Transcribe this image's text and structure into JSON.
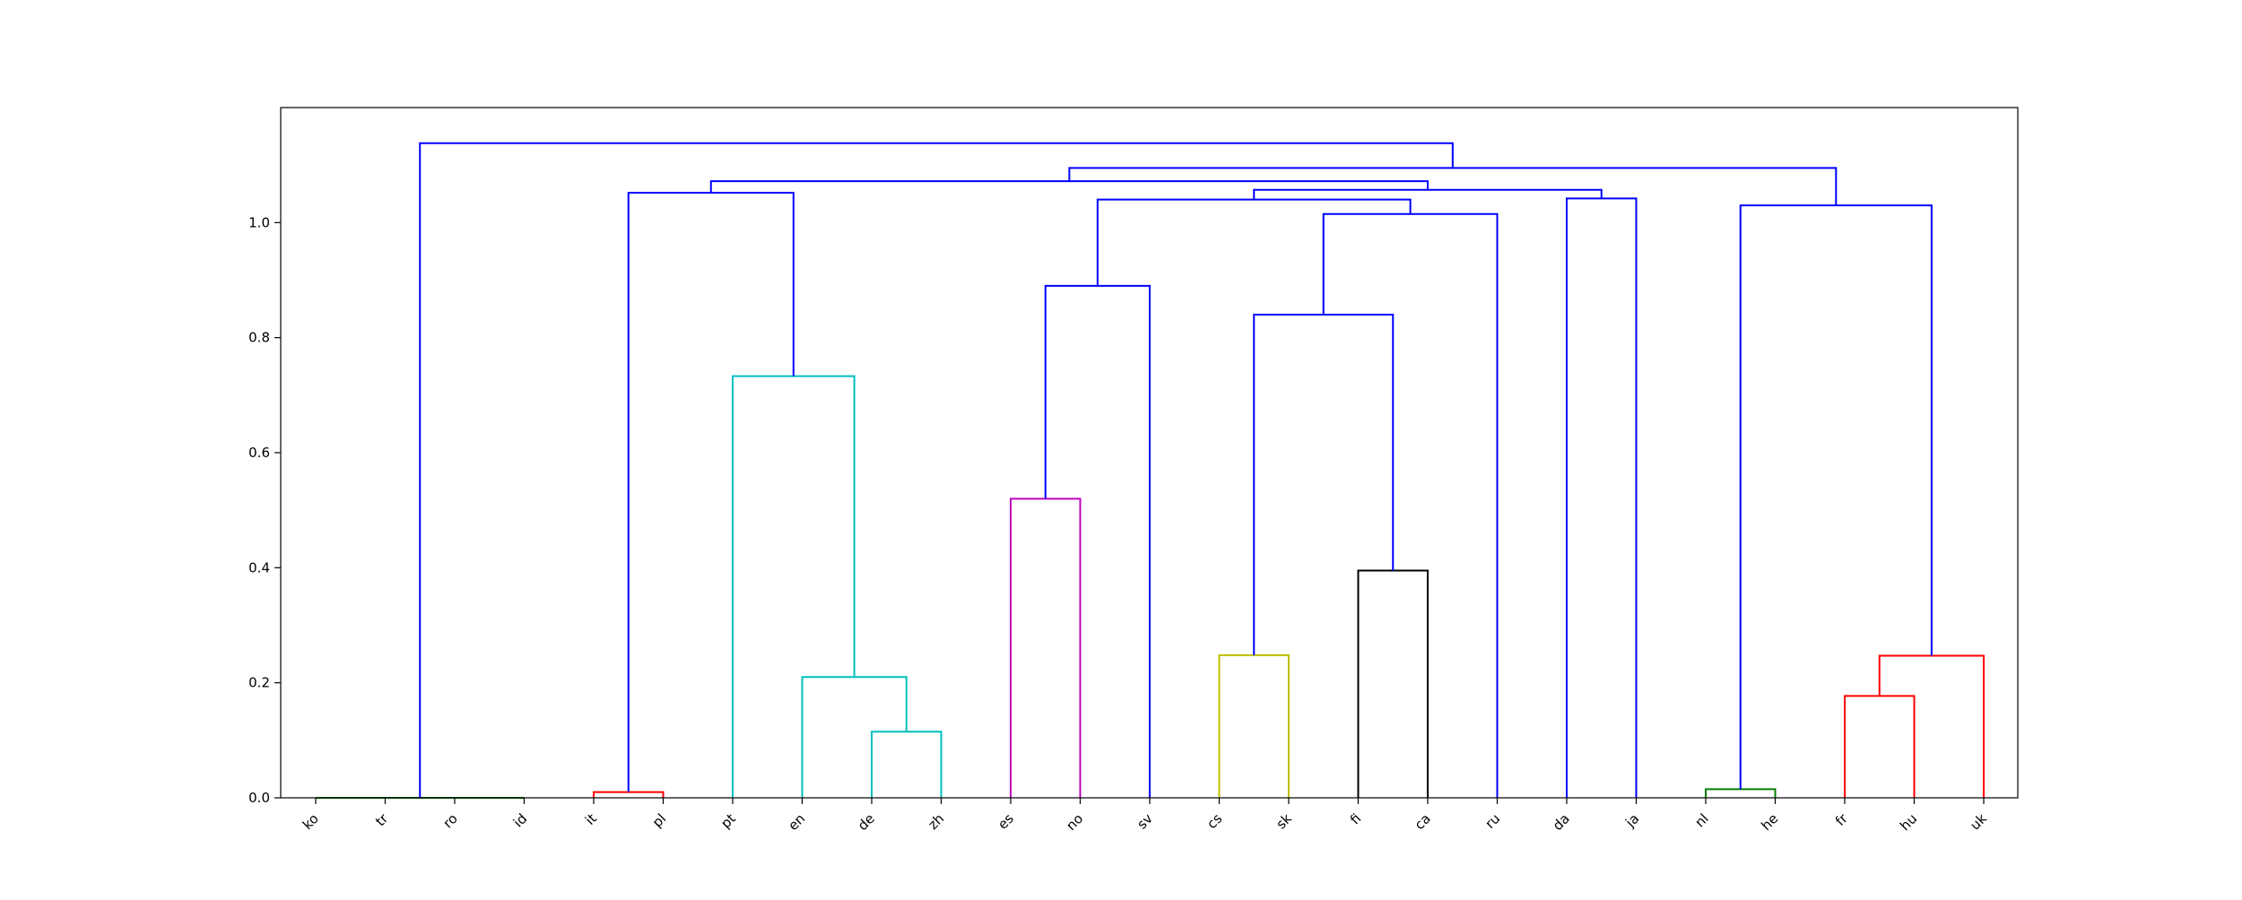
{
  "chart_data": {
    "type": "dendrogram",
    "leaves": [
      "ko",
      "tr",
      "ro",
      "id",
      "it",
      "pl",
      "pt",
      "en",
      "de",
      "zh",
      "es",
      "no",
      "sv",
      "cs",
      "sk",
      "fi",
      "ca",
      "ru",
      "da",
      "ja",
      "nl",
      "he",
      "fr",
      "hu",
      "uk"
    ],
    "yticks": [
      "0.0",
      "0.2",
      "0.4",
      "0.6",
      "0.8",
      "1.0"
    ],
    "ytick_values": [
      0.0,
      0.2,
      0.4,
      0.6,
      0.8,
      1.0
    ],
    "ylim": [
      0,
      1.2
    ],
    "grid": false,
    "colors": {
      "blue": "#0000ff",
      "green": "#008000",
      "red": "#ff0000",
      "cyan": "#00bfbf",
      "magenta": "#bf00bf",
      "olive": "#bfbf00",
      "black": "#000000"
    },
    "links": [
      {
        "left": "ko",
        "right": "tr",
        "height": 0.0,
        "color": "green"
      },
      {
        "left": "ro",
        "right": "id",
        "height": 0.0,
        "color": "green"
      },
      {
        "left": "ko+tr",
        "right": "ro+id",
        "height": 0.0,
        "color": "green"
      },
      {
        "left": "it",
        "right": "pl",
        "height": 0.01,
        "color": "red"
      },
      {
        "left": "de",
        "right": "zh",
        "height": 0.115,
        "color": "cyan"
      },
      {
        "left": "en",
        "right": "de+zh",
        "height": 0.21,
        "color": "cyan"
      },
      {
        "left": "pt",
        "right": "en+de+zh",
        "height": 0.733,
        "color": "cyan"
      },
      {
        "left": "es",
        "right": "no",
        "height": 0.52,
        "color": "magenta"
      },
      {
        "left": "cs",
        "right": "sk",
        "height": 0.248,
        "color": "olive"
      },
      {
        "left": "fi",
        "right": "ca",
        "height": 0.395,
        "color": "black"
      },
      {
        "left": "nl",
        "right": "he",
        "height": 0.015,
        "color": "green"
      },
      {
        "left": "fr",
        "right": "hu",
        "height": 0.177,
        "color": "red"
      },
      {
        "left": "fr+hu",
        "right": "uk",
        "height": 0.247,
        "color": "red"
      },
      {
        "left": "es+no",
        "right": "sv",
        "height": 0.89,
        "color": "blue"
      },
      {
        "left": "cs+sk",
        "right": "fi+ca",
        "height": 0.84,
        "color": "blue"
      },
      {
        "left": "cs+sk+fi+ca",
        "right": "ru",
        "height": 1.015,
        "color": "blue"
      },
      {
        "left": "es+no+sv",
        "right": "cs+sk+fi+ca+ru",
        "height": 1.04,
        "color": "blue"
      },
      {
        "left": "da",
        "right": "ja",
        "height": 1.042,
        "color": "blue"
      },
      {
        "left": "es…ru",
        "right": "da+ja",
        "height": 1.057,
        "color": "blue"
      },
      {
        "left": "nl+he",
        "right": "fr+hu+uk",
        "height": 1.03,
        "color": "blue"
      },
      {
        "left": "it+pl",
        "right": "pt+en+de+zh",
        "height": 1.052,
        "color": "blue"
      },
      {
        "left": "it…zh",
        "right": "es…ja",
        "height": 1.072,
        "color": "blue"
      },
      {
        "left": "it…ja",
        "right": "nl…uk",
        "height": 1.095,
        "color": "blue"
      },
      {
        "left": "ko+tr+ro+id",
        "right": "it…uk",
        "height": 1.138,
        "color": "blue"
      }
    ]
  }
}
